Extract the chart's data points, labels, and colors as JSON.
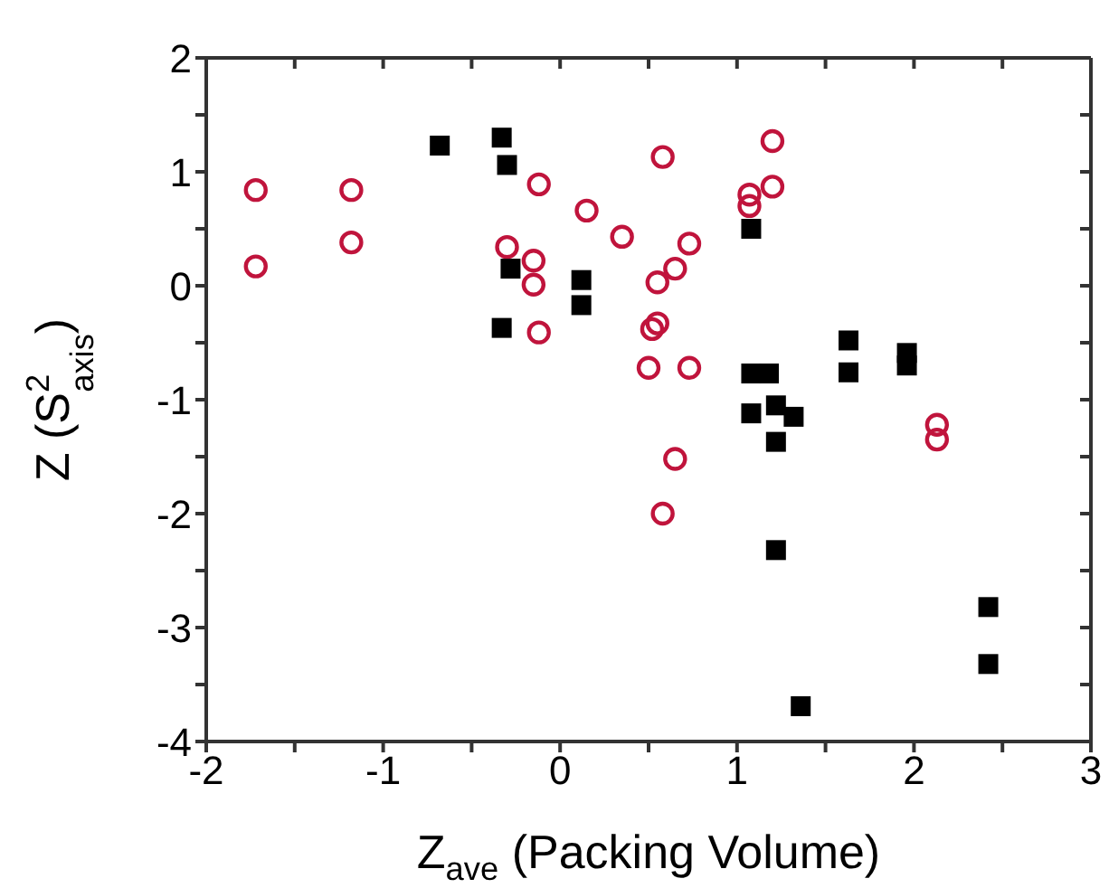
{
  "chart_data": {
    "type": "scatter",
    "xlabel": "Z$_{ave}$ (Packing Volume)",
    "ylabel": "Z (S$^{2}$$_{axis}$)",
    "xlim": [
      -2,
      3
    ],
    "ylim": [
      -4,
      2
    ],
    "xticks": [
      -2,
      {
        "value": -1.5,
        "label": null
      },
      -1,
      {
        "value": -0.5,
        "label": null
      },
      0,
      {
        "value": 0.5,
        "label": null
      },
      1,
      {
        "value": 1.5,
        "label": null
      },
      2,
      {
        "value": 2.5,
        "label": null
      },
      3
    ],
    "yticks": [
      -4,
      {
        "value": -3.5,
        "label": null
      },
      -3,
      {
        "value": -2.5,
        "label": null
      },
      -2,
      {
        "value": -1.5,
        "label": null
      },
      -1,
      {
        "value": -0.5,
        "label": null
      },
      0,
      {
        "value": 0.5,
        "label": null
      },
      1,
      {
        "value": 1.5,
        "label": null
      },
      2
    ],
    "legend": false,
    "series": [
      {
        "color": "#c0143c",
        "marker": "circle",
        "x": [
          -1.72,
          -1.72,
          -1.18,
          -1.18,
          -0.3,
          -0.15,
          -0.15,
          -0.12,
          -0.12,
          0.15,
          0.35,
          0.52,
          0.5,
          0.55,
          0.55,
          0.58,
          0.58,
          0.65,
          0.65,
          0.73,
          0.73,
          1.07,
          1.07,
          1.2,
          1.2,
          2.13,
          2.13
        ],
        "values": [
          0.84,
          0.17,
          0.84,
          0.38,
          0.34,
          0.22,
          0.01,
          0.89,
          -0.41,
          0.66,
          0.43,
          -0.38,
          -0.72,
          0.03,
          -0.33,
          1.13,
          -2.0,
          0.15,
          -1.52,
          0.37,
          -0.72,
          0.8,
          0.7,
          1.27,
          0.87,
          -1.22,
          -1.35
        ]
      },
      {
        "color": "#000000",
        "marker": "square",
        "x": [
          -0.68,
          -0.33,
          -0.3,
          -0.28,
          -0.33,
          0.12,
          0.12,
          1.08,
          1.08,
          1.18,
          1.08,
          1.22,
          1.32,
          1.22,
          1.22,
          1.63,
          1.63,
          1.96,
          1.96,
          2.42,
          2.42,
          1.36
        ],
        "values": [
          1.23,
          1.3,
          1.06,
          0.15,
          -0.37,
          -0.17,
          0.05,
          0.5,
          -0.77,
          -0.77,
          -1.12,
          -1.05,
          -1.15,
          -1.37,
          -2.32,
          -0.48,
          -0.76,
          -0.59,
          -0.7,
          -2.82,
          -3.32,
          -3.69
        ]
      }
    ]
  }
}
